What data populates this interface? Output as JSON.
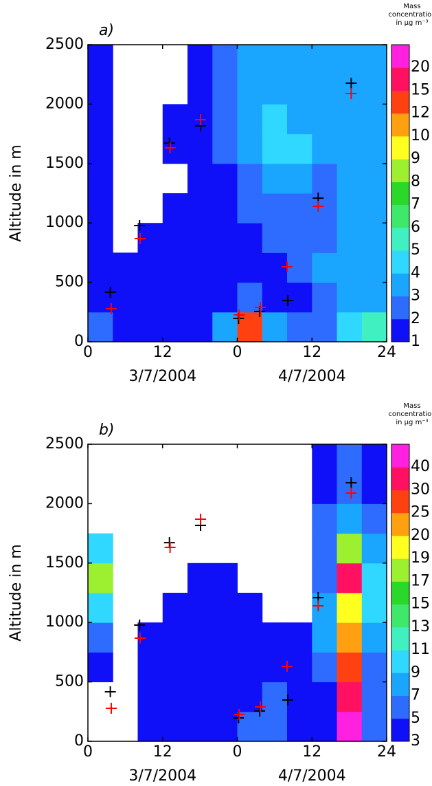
{
  "chart_data": [
    {
      "type": "contour",
      "panel_label": "a)",
      "ylabel": "Altitude in m",
      "xlim": [
        0,
        48
      ],
      "xticks": [
        0,
        12,
        {
          "value": 24,
          "label": "0"
        },
        {
          "value": 36,
          "label": "12"
        },
        {
          "value": 48,
          "label": "24"
        }
      ],
      "x_groups": [
        "3/7/2004",
        "4/7/2004"
      ],
      "ylim": [
        0,
        2500
      ],
      "yticks": [
        0,
        500,
        1000,
        1500,
        2000,
        2500
      ],
      "colorbar_title": [
        "Mass",
        "concentration",
        "in µg m⁻³"
      ],
      "levels": [
        1,
        2,
        3,
        4,
        5,
        6,
        7,
        8,
        9,
        10,
        12,
        15,
        20
      ],
      "colors": [
        "#1010f8",
        "#2e6cff",
        "#1aa6ff",
        "#30d8ff",
        "#40f0c0",
        "#3ee86a",
        "#2ad82a",
        "#9cf030",
        "#ffff20",
        "#ffa010",
        "#ff4010",
        "#ff1060",
        "#ff20e0"
      ],
      "z": [
        [
          2,
          1,
          1,
          1,
          1,
          3,
          12,
          3,
          2,
          2,
          4,
          5
        ],
        [
          1,
          1,
          1,
          1,
          1,
          1,
          2,
          1,
          1,
          2,
          3,
          3
        ],
        [
          1,
          1,
          1,
          1,
          1,
          1,
          1,
          1,
          2,
          3,
          3,
          3
        ],
        [
          1,
          null,
          1,
          1,
          1,
          1,
          1,
          2,
          2,
          2,
          3,
          3
        ],
        [
          1,
          null,
          null,
          1,
          1,
          1,
          2,
          2,
          2,
          2,
          3,
          3
        ],
        [
          1,
          null,
          null,
          null,
          1,
          1,
          2,
          3,
          3,
          2,
          3,
          3
        ],
        [
          1,
          null,
          null,
          1,
          1,
          2,
          3,
          4,
          4,
          3,
          3,
          3
        ],
        [
          1,
          null,
          null,
          1,
          1,
          2,
          3,
          4,
          3,
          3,
          3,
          3
        ],
        [
          1,
          null,
          null,
          null,
          1,
          2,
          3,
          3,
          3,
          3,
          3,
          3
        ],
        [
          1,
          null,
          null,
          null,
          1,
          2,
          3,
          3,
          3,
          3,
          3,
          3
        ]
      ],
      "markers": [
        {
          "color": "#000000",
          "x": [
            3.6,
            8.3,
            13.1,
            18.1,
            24.2,
            27.6,
            32.1,
            37,
            42.3
          ],
          "y": [
            417,
            978,
            1672,
            1817,
            197,
            255,
            347,
            1209,
            2176
          ]
        },
        {
          "color": "#ff0000",
          "x": [
            3.75,
            8.4,
            13.2,
            18.1,
            24.3,
            27.7,
            32,
            37,
            42.3
          ],
          "y": [
            278,
            868,
            1632,
            1869,
            226,
            289,
            631,
            1140,
            2089
          ]
        }
      ]
    },
    {
      "type": "contour",
      "panel_label": "b)",
      "ylabel": "Altitude in m",
      "xlim": [
        0,
        48
      ],
      "xticks": [
        0,
        12,
        {
          "value": 24,
          "label": "0"
        },
        {
          "value": 36,
          "label": "12"
        },
        {
          "value": 48,
          "label": "24"
        }
      ],
      "x_groups": [
        "3/7/2004",
        "4/7/2004"
      ],
      "ylim": [
        0,
        2500
      ],
      "yticks": [
        0,
        500,
        1000,
        1500,
        2000,
        2500
      ],
      "colorbar_title": [
        "Mass",
        "concentration",
        "in µg m⁻³"
      ],
      "levels": [
        3,
        5,
        7,
        9,
        11,
        13,
        15,
        17,
        19,
        20,
        25,
        30,
        40
      ],
      "colors": [
        "#1010f8",
        "#2e6cff",
        "#1aa6ff",
        "#30d8ff",
        "#40f0c0",
        "#3ee86a",
        "#2ad82a",
        "#9cf030",
        "#ffff20",
        "#ffa010",
        "#ff4010",
        "#ff1060",
        "#ff20e0"
      ],
      "z": [
        [
          null,
          null,
          3,
          3,
          3,
          3,
          5,
          5,
          3,
          3,
          40,
          5
        ],
        [
          null,
          null,
          3,
          3,
          3,
          3,
          3,
          5,
          3,
          3,
          30,
          5
        ],
        [
          3,
          null,
          3,
          3,
          3,
          3,
          3,
          3,
          3,
          5,
          25,
          5
        ],
        [
          5,
          null,
          3,
          3,
          3,
          3,
          3,
          3,
          3,
          7,
          20,
          7
        ],
        [
          9,
          null,
          null,
          3,
          3,
          3,
          3,
          null,
          null,
          7,
          19,
          9
        ],
        [
          17,
          null,
          null,
          null,
          3,
          3,
          null,
          null,
          null,
          5,
          30,
          9
        ],
        [
          9,
          null,
          null,
          null,
          null,
          null,
          null,
          null,
          null,
          5,
          17,
          7
        ],
        [
          null,
          null,
          null,
          null,
          null,
          null,
          null,
          null,
          null,
          5,
          7,
          5
        ],
        [
          null,
          null,
          null,
          null,
          null,
          null,
          null,
          null,
          null,
          3,
          5,
          3
        ],
        [
          null,
          null,
          null,
          null,
          null,
          null,
          null,
          null,
          null,
          3,
          5,
          3
        ]
      ],
      "markers": [
        {
          "color": "#000000",
          "x": [
            3.6,
            8.3,
            13.1,
            18.1,
            24.2,
            27.6,
            32.1,
            37,
            42.3
          ],
          "y": [
            417,
            978,
            1672,
            1817,
            197,
            255,
            347,
            1209,
            2176
          ]
        },
        {
          "color": "#ff0000",
          "x": [
            3.75,
            8.4,
            13.2,
            18.1,
            24.3,
            27.7,
            32,
            37,
            42.3
          ],
          "y": [
            278,
            868,
            1632,
            1869,
            226,
            289,
            631,
            1140,
            2089
          ]
        }
      ]
    }
  ]
}
